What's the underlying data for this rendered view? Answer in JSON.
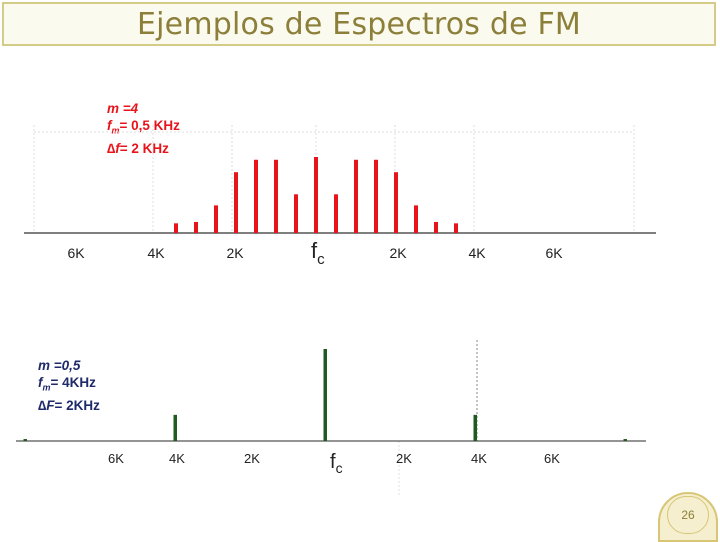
{
  "slide": {
    "title": "Ejemplos de Espectros de FM",
    "page_number": "26"
  },
  "spectrum_top": {
    "params": {
      "m": "m =4",
      "fm_prefix": "f",
      "fm_sub": "m",
      "fm_value": "= 0,5 KHz",
      "df_prefix": "∆f",
      "df_value": "= 2 KHz"
    },
    "color": "#e8141b",
    "tick_labels": [
      "6K",
      "4K",
      "2K",
      "fc",
      "2K",
      "4K",
      "6K"
    ],
    "carrier_label": "f",
    "carrier_sub": "c",
    "offsets_khz": [
      -3.5,
      -3,
      -2.5,
      -2,
      -1.5,
      -1,
      -0.5,
      0,
      0.5,
      1,
      1.5,
      2,
      2.5,
      3,
      3.5
    ],
    "amplitudes": [
      0.07,
      0.08,
      0.2,
      0.44,
      0.53,
      0.53,
      0.28,
      0.55,
      0.28,
      0.53,
      0.53,
      0.44,
      0.2,
      0.08,
      0.07
    ]
  },
  "spectrum_bottom": {
    "params": {
      "m": "m =0,5",
      "fm_prefix": "f",
      "fm_sub": "m",
      "fm_value": "= 4KHz",
      "df_prefix": "∆F",
      "df_value": "= 2KHz"
    },
    "color": "#1e5b20",
    "tick_labels": [
      "6K",
      "4K",
      "2K",
      "fc",
      "2K",
      "4K",
      "6K"
    ],
    "carrier_label": "f",
    "carrier_sub": "c",
    "offsets_khz": [
      -8,
      -4,
      0,
      4,
      8
    ],
    "amplitudes": [
      0.02,
      0.27,
      0.95,
      0.27,
      0.02
    ]
  },
  "colors": {
    "title": "#8c7f3a",
    "title_border": "#d4cc86",
    "grid": "#dcdcdc",
    "axis": "#333333"
  }
}
